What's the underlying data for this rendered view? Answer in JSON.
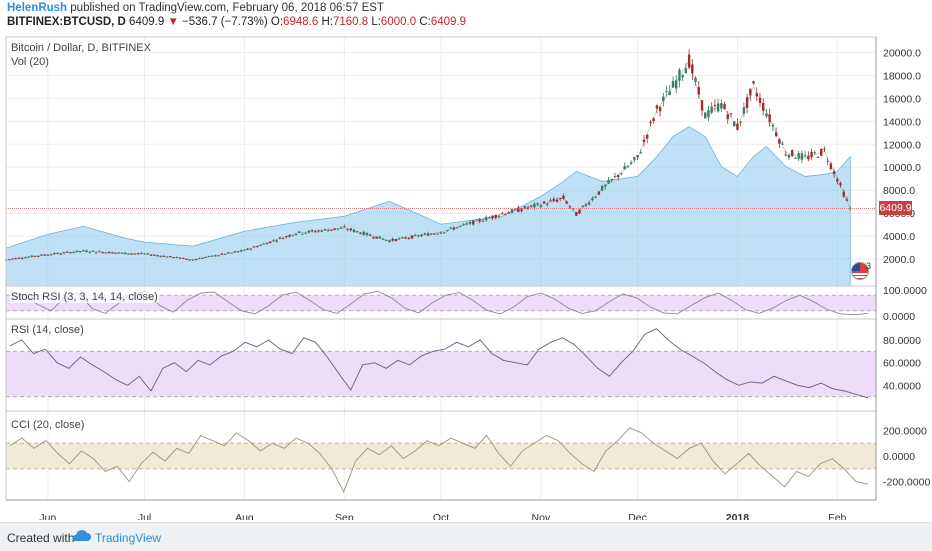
{
  "header": {
    "author": "HelenRush",
    "published_text": "published on TradingView.com, February 06, 2018 06:57 EST",
    "symbol": "BITFINEX:BTCUSD, D",
    "last": "6409.9",
    "change": "−536.7 (−7.73%)",
    "o_label": "O:",
    "o_value": "6948.6",
    "h_label": "H:",
    "h_value": "7160.8",
    "l_label": "L:",
    "l_value": "6000.0",
    "c_label": "C:",
    "c_value": "6409.9"
  },
  "panes": {
    "main_title": "Bitcoin / Dollar, D, BITFINEX",
    "vol_title": "Vol (20)",
    "stoch_title": "Stoch RSI (3, 3, 14, 14, close)",
    "rsi_title": "RSI (14, close)",
    "cci_title": "CCI (20, close)",
    "last_price_badge": "6409.9",
    "flag_count": "3"
  },
  "footer": {
    "created_with": "Created with",
    "brand": "TradingView"
  },
  "colors": {
    "up": "#3a7d5f",
    "down": "#9c2f2f",
    "volume_area": "#8cc8ec",
    "rsi_band": "#eedcf8",
    "cci_band": "#f2ead9",
    "accent": "#2f8fd8"
  },
  "chart_data": {
    "type": "line",
    "price": {
      "x": [
        "2017-05-19",
        "2017-06-01",
        "2017-06-12",
        "2017-06-25",
        "2017-07-01",
        "2017-07-16",
        "2017-08-01",
        "2017-08-17",
        "2017-09-01",
        "2017-09-15",
        "2017-10-01",
        "2017-10-20",
        "2017-11-01",
        "2017-11-08",
        "2017-11-12",
        "2017-11-20",
        "2017-12-01",
        "2017-12-07",
        "2017-12-12",
        "2017-12-17",
        "2017-12-22",
        "2017-12-27",
        "2018-01-01",
        "2018-01-06",
        "2018-01-10",
        "2018-01-16",
        "2018-01-22",
        "2018-01-28",
        "2018-02-01",
        "2018-02-05"
      ],
      "close": [
        1950,
        2400,
        2700,
        2500,
        2450,
        1950,
        2750,
        4250,
        4700,
        3600,
        4350,
        5950,
        6750,
        7300,
        5900,
        8100,
        10800,
        15000,
        17000,
        19300,
        14500,
        15500,
        13500,
        17000,
        14800,
        11300,
        10800,
        11400,
        9000,
        6409.9
      ],
      "ylim": [
        0,
        21000
      ],
      "yticks": [
        2000,
        4000,
        6000,
        8000,
        10000,
        12000,
        14000,
        16000,
        18000,
        20000
      ],
      "ytick_labels": [
        "2000.0",
        "4000.0",
        "6000.0",
        "8000.0",
        "10000.0",
        "12000.0",
        "14000.0",
        "16000.0",
        "18000.0",
        "20000.0"
      ]
    },
    "volume": {
      "ymax": 250000,
      "level": [
        38000,
        52000,
        60000,
        48000,
        44000,
        40000,
        55000,
        64000,
        70000,
        85000,
        62000,
        70000,
        90000,
        105000,
        115000,
        105000,
        110000,
        130000,
        150000,
        160000,
        150000,
        120000,
        110000,
        130000,
        140000,
        120000,
        110000,
        112000,
        115000,
        130000
      ]
    },
    "stoch_rsi": {
      "ylim": [
        0,
        100
      ],
      "band": [
        20,
        80
      ],
      "yticks": [
        0,
        100
      ],
      "ytick_labels": [
        "0.0000",
        "100.0000"
      ],
      "values": [
        60,
        85,
        45,
        20,
        70,
        90,
        30,
        10,
        50,
        85,
        95,
        40,
        15,
        60,
        88,
        92,
        55,
        20,
        8,
        40,
        80,
        92,
        60,
        25,
        10,
        45,
        85,
        95,
        70,
        30,
        12,
        50,
        80,
        90,
        60,
        22,
        8,
        35,
        75,
        88,
        65,
        30,
        10,
        20,
        55,
        85,
        70,
        35,
        12,
        8,
        40,
        70,
        88,
        60,
        25,
        10,
        30,
        60,
        80,
        55,
        25,
        8,
        5,
        10
      ]
    },
    "rsi": {
      "ylim": [
        20,
        95
      ],
      "band": [
        30,
        70
      ],
      "yticks": [
        40,
        60,
        80
      ],
      "ytick_labels": [
        "40.0000",
        "60.0000",
        "80.0000"
      ],
      "values": [
        75,
        80,
        68,
        72,
        60,
        55,
        65,
        58,
        52,
        45,
        40,
        48,
        35,
        55,
        60,
        52,
        62,
        58,
        66,
        70,
        78,
        74,
        80,
        72,
        68,
        82,
        78,
        65,
        50,
        36,
        58,
        60,
        55,
        62,
        58,
        66,
        70,
        72,
        78,
        74,
        80,
        68,
        62,
        60,
        58,
        72,
        78,
        82,
        76,
        66,
        55,
        48,
        60,
        70,
        85,
        90,
        80,
        72,
        66,
        60,
        52,
        45,
        40,
        43,
        42,
        48,
        44,
        40,
        38,
        42,
        37,
        35,
        32,
        29
      ]
    },
    "cci": {
      "ylim": [
        -320,
        320
      ],
      "band": [
        -100,
        100
      ],
      "yticks": [
        -200,
        0,
        200
      ],
      "ytick_labels": [
        "-200.0000",
        "0.0000",
        "200.0000"
      ],
      "values": [
        80,
        140,
        60,
        120,
        20,
        -60,
        40,
        -20,
        -120,
        -80,
        -200,
        -60,
        30,
        -40,
        60,
        20,
        160,
        120,
        80,
        180,
        120,
        40,
        100,
        60,
        140,
        100,
        20,
        -100,
        -280,
        -40,
        60,
        10,
        80,
        -20,
        40,
        120,
        80,
        140,
        100,
        60,
        160,
        20,
        -80,
        40,
        100,
        160,
        120,
        20,
        -60,
        -120,
        40,
        120,
        220,
        180,
        100,
        40,
        -20,
        60,
        100,
        -40,
        -140,
        -60,
        20,
        -80,
        -160,
        -240,
        -120,
        -160,
        -60,
        -20,
        -100,
        -200,
        -220
      ]
    },
    "x_axis": {
      "labels": [
        "Jun",
        "Jul",
        "Aug",
        "Sep",
        "Oct",
        "Nov",
        "Dec",
        "2018",
        "Feb"
      ],
      "dates": [
        "2017-06-01",
        "2017-07-01",
        "2017-08-01",
        "2017-09-01",
        "2017-10-01",
        "2017-11-01",
        "2017-12-01",
        "2018-01-01",
        "2018-02-01"
      ],
      "range": [
        "2017-05-19",
        "2018-02-13"
      ]
    }
  }
}
